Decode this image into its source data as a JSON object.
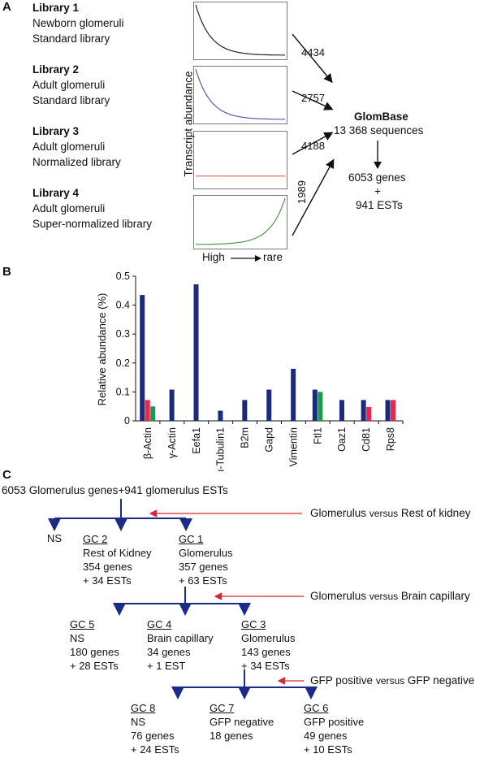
{
  "panelA": {
    "letter": "A",
    "libraries": [
      {
        "title": "Library 1",
        "line1": "Newborn glomeruli",
        "line2": "Standard library",
        "count": "4434",
        "curve": "decay",
        "color": "#222222"
      },
      {
        "title": "Library 2",
        "line1": "Adult glomeruli",
        "line2": "Standard library",
        "count": "2757",
        "curve": "decay",
        "color": "#5a5aa8"
      },
      {
        "title": "Library 3",
        "line1": "Adult glomeruli",
        "line2": "Normalized library",
        "count": "4188",
        "curve": "flat",
        "color": "#e07060"
      },
      {
        "title": "Library 4",
        "line1": "Adult glomeruli",
        "line2": "Super-normalized library",
        "count": "1989",
        "curve": "growth",
        "color": "#4a9a4a"
      }
    ],
    "ylabel": "Transcript abundance",
    "x_left": "High",
    "x_right": "rare",
    "glombase_title": "GlomBase",
    "glombase_sequences": "13 368 sequences",
    "genes": "6053 genes",
    "plus": "+",
    "ests": "941 ESTs"
  },
  "panelB": {
    "letter": "B",
    "chart_data": {
      "type": "bar",
      "ylabel": "Relative abundance (%)",
      "ylim": [
        0,
        0.5
      ],
      "yticks": [
        "0",
        "0.1",
        "0.2",
        "0.3",
        "0.4",
        "0.5"
      ],
      "categories": [
        "β-Actin",
        "γ-Actin",
        "Eefa1",
        "α-Tubulin1",
        "B2m",
        "Gapd",
        "Vimentin",
        "Ftl1",
        "Oaz1",
        "Cd81",
        "Rps8"
      ],
      "series": [
        {
          "color": "#1c2a7a",
          "values": [
            0.435,
            0.108,
            0.472,
            0.035,
            0.072,
            0.108,
            0.18,
            0.108,
            0.072,
            0.072,
            0.072
          ]
        },
        {
          "color": "#e8274b",
          "values": [
            0.072,
            0,
            0,
            0,
            0,
            0,
            0,
            0,
            0,
            0.048,
            0.072
          ]
        },
        {
          "color": "#1a9a4a",
          "values": [
            0.05,
            0,
            0,
            0,
            0,
            0,
            0,
            0.1,
            0,
            0,
            0
          ]
        }
      ],
      "grid": false
    }
  },
  "panelC": {
    "letter": "C",
    "top": "6053 Glomerulus genes+941 glomerulus ESTs",
    "comparisons": [
      {
        "a": "Glomerulus",
        "v": "versus",
        "b": "Rest of kidney"
      },
      {
        "a": "Glomerulus",
        "v": "versus",
        "b": "Brain capillary"
      },
      {
        "a": "GFP positive",
        "v": "versus",
        "b": "GFP negative"
      }
    ],
    "ns": "NS",
    "groups": {
      "gc2": {
        "title": "GC 2",
        "l1": "Rest of Kidney",
        "l2": "354 genes",
        "l3": "+ 34 ESTs"
      },
      "gc1": {
        "title": "GC 1",
        "l1": "Glomerulus",
        "l2": "357 genes",
        "l3": "+ 63 ESTs"
      },
      "gc5": {
        "title": "GC 5",
        "l1": "NS",
        "l2": "180 genes",
        "l3": "+ 28 ESTs"
      },
      "gc4": {
        "title": "GC 4",
        "l1": "Brain capillary",
        "l2": "34 genes",
        "l3": "+ 1 EST"
      },
      "gc3": {
        "title": "GC 3",
        "l1": "Glomerulus",
        "l2": "143 genes",
        "l3": "+ 34 ESTs"
      },
      "gc8": {
        "title": "GC 8",
        "l1": "NS",
        "l2": "76 genes",
        "l3": "+ 24 ESTs"
      },
      "gc7": {
        "title": "GC 7",
        "l1": "GFP negative",
        "l2": "18 genes",
        "l3": ""
      },
      "gc6": {
        "title": "GC 6",
        "l1": "GFP positive",
        "l2": "49 genes",
        "l3": "+ 10 ESTs"
      }
    },
    "tree_color": "#1c2a8a",
    "arrow_color": "#d6283a"
  }
}
